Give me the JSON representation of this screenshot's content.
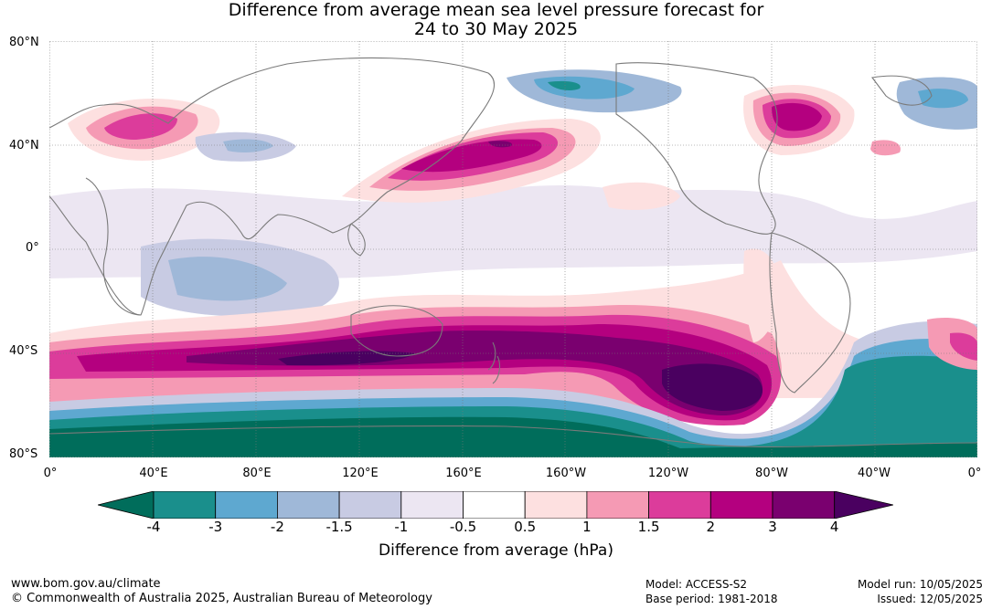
{
  "title": {
    "line1": "Difference from average mean sea level pressure forecast for",
    "line2": "24 to 30 May 2025"
  },
  "axes": {
    "lat_labels": [
      "80°N",
      "40°N",
      "0°",
      "40°S",
      "80°S"
    ],
    "lon_labels": [
      "0°",
      "40°E",
      "80°E",
      "120°E",
      "160°E",
      "160°W",
      "120°W",
      "80°W",
      "40°W",
      "0°"
    ]
  },
  "colorbar": {
    "label": "Difference from average (hPa)",
    "ticks": [
      "-4",
      "-3",
      "-2",
      "-1.5",
      "-1",
      "-0.5",
      "0.5",
      "1",
      "1.5",
      "2",
      "3",
      "4"
    ],
    "colors": [
      "#1a8f8c",
      "#5ea8d0",
      "#9fb8d8",
      "#c8cbe3",
      "#ece6f2",
      "#ffffff",
      "#fde0e0",
      "#f59ab4",
      "#dc3c9b",
      "#b4007f",
      "#7a006f"
    ],
    "under_color": "#006d5b",
    "over_color": "#4a0060"
  },
  "footer": {
    "url": "www.bom.gov.au/climate",
    "copyright": "© Commonwealth of Australia 2025, Australian Bureau of Meteorology",
    "model": "Model: ACCESS-S2",
    "base_period": "Base period: 1981-2018",
    "model_run": "Model run: 10/05/2025",
    "issued": "Issued: 12/05/2025"
  }
}
